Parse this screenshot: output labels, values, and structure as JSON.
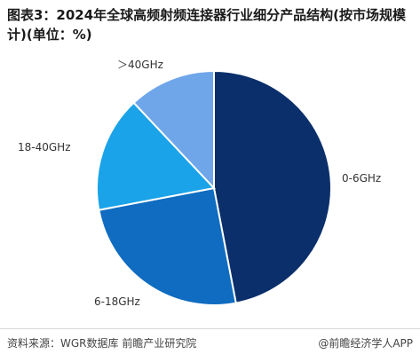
{
  "title": "图表3：2024年全球高频射频连接器行业细分产品结构(按市场规模计)(单位：%)",
  "chart_data": {
    "type": "pie",
    "title": "图表3：2024年全球高频射频连接器行业细分产品结构(按市场规模计)(单位：%)",
    "unit": "%",
    "slices": [
      {
        "label": "0-6GHz",
        "value": 47,
        "color": "#0a2f6b"
      },
      {
        "label": "6-18GHz",
        "value": 25,
        "color": "#0f6cc0"
      },
      {
        "label": "18-40GHz",
        "value": 16,
        "color": "#1aa3e8"
      },
      {
        "label": "＞40GHz",
        "value": 12,
        "color": "#6fa6ea"
      }
    ],
    "legend": "none"
  },
  "footer": {
    "source": "资料来源：WGR数据库 前瞻产业研究院",
    "brand": "@前瞻经济学人APP"
  }
}
